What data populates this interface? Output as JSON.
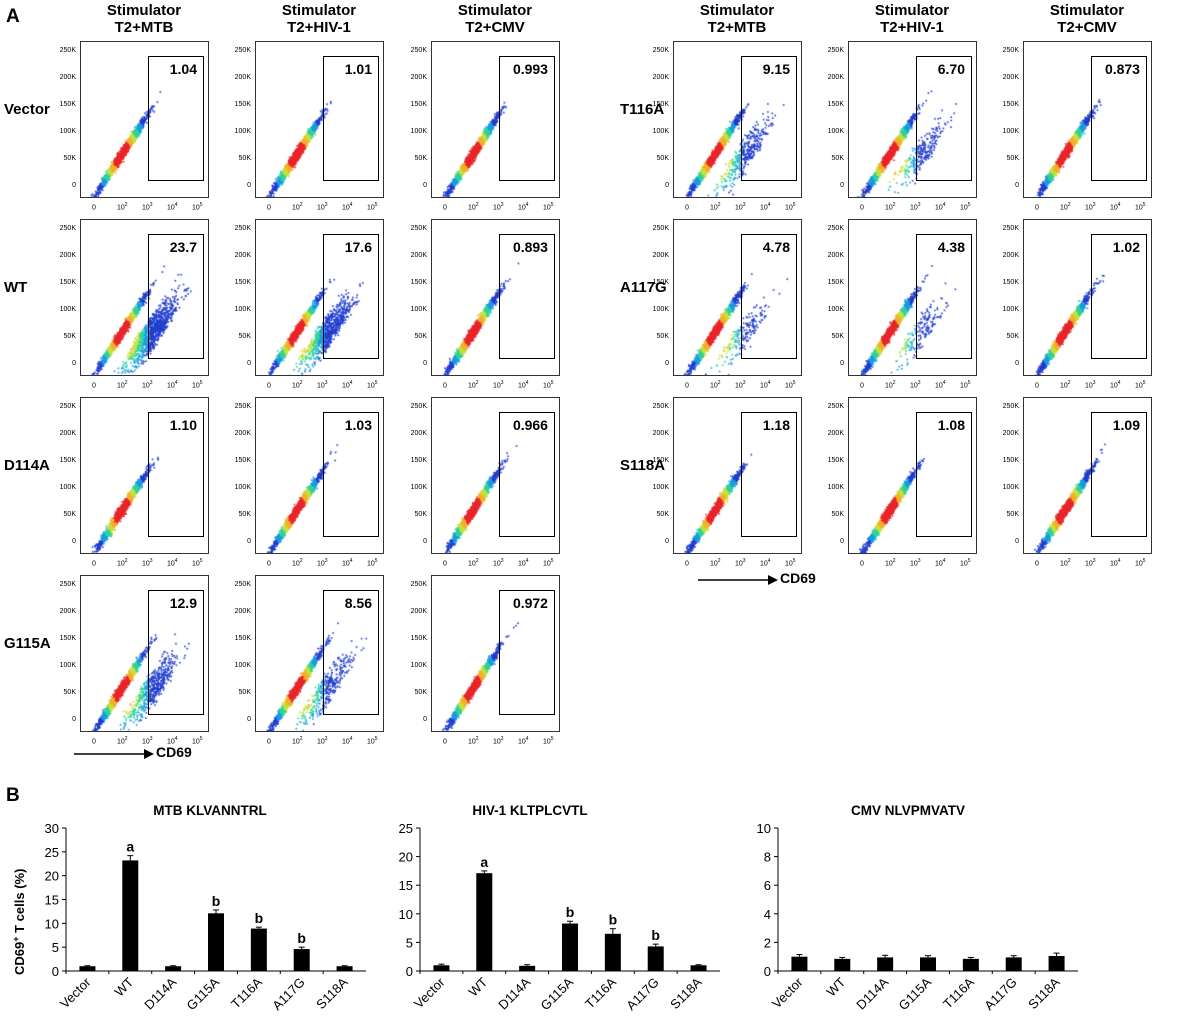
{
  "panel_labels": {
    "a": "A",
    "b": "B"
  },
  "flow": {
    "col_headers": [
      "Stimulator\nT2+MTB",
      "Stimulator\nT2+HIV-1",
      "Stimulator\nT2+CMV"
    ],
    "y_ticks": [
      "250K",
      "200K",
      "150K",
      "100K",
      "50K",
      "0"
    ],
    "x_tick_base": [
      "0",
      "10",
      "10",
      "10",
      "10"
    ],
    "x_tick_exp": [
      "",
      "2",
      "3",
      "4",
      "5"
    ],
    "axis_label": "CD69",
    "left_rows": [
      {
        "label": "Vector",
        "values": [
          "1.04",
          "1.01",
          "0.993"
        ]
      },
      {
        "label": "WT",
        "values": [
          "23.7",
          "17.6",
          "0.893"
        ]
      },
      {
        "label": "D114A",
        "values": [
          "1.10",
          "1.03",
          "0.966"
        ]
      },
      {
        "label": "G115A",
        "values": [
          "12.9",
          "8.56",
          "0.972"
        ]
      }
    ],
    "right_rows": [
      {
        "label": "T116A",
        "values": [
          "9.15",
          "6.70",
          "0.873"
        ]
      },
      {
        "label": "A117G",
        "values": [
          "4.78",
          "4.38",
          "1.02"
        ]
      },
      {
        "label": "S118A",
        "values": [
          "1.18",
          "1.08",
          "1.09"
        ]
      }
    ]
  },
  "chart_data": [
    {
      "type": "bar",
      "title": "MTB  KLVANNTRL",
      "ylabel": "CD69+ T cells (%)",
      "categories": [
        "Vector",
        "WT",
        "D114A",
        "G115A",
        "T116A",
        "A117G",
        "S118A"
      ],
      "values": [
        1.0,
        23.2,
        1.0,
        12.1,
        8.9,
        4.6,
        1.0
      ],
      "errors": [
        0.1,
        1.0,
        0.1,
        0.7,
        0.3,
        0.4,
        0.1
      ],
      "annotations": [
        "",
        "a",
        "",
        "b",
        "b",
        "b",
        ""
      ],
      "ylim": [
        0,
        30
      ],
      "yticks": [
        0,
        5,
        10,
        15,
        20,
        25,
        30
      ]
    },
    {
      "type": "bar",
      "title": "HIV-1  KLTPLCVTL",
      "categories": [
        "Vector",
        "WT",
        "D114A",
        "G115A",
        "T116A",
        "A117G",
        "S118A"
      ],
      "values": [
        1.0,
        17.1,
        0.9,
        8.3,
        6.5,
        4.3,
        1.0
      ],
      "errors": [
        0.2,
        0.4,
        0.2,
        0.4,
        0.9,
        0.4,
        0.1
      ],
      "annotations": [
        "",
        "a",
        "",
        "b",
        "b",
        "b",
        ""
      ],
      "ylim": [
        0,
        25
      ],
      "yticks": [
        0,
        5,
        10,
        15,
        20,
        25
      ]
    },
    {
      "type": "bar",
      "title": "CMV  NLVPMVATV",
      "categories": [
        "Vector",
        "WT",
        "D114A",
        "G115A",
        "T116A",
        "A117G",
        "S118A"
      ],
      "values": [
        1.0,
        0.85,
        0.95,
        0.95,
        0.85,
        0.95,
        1.05
      ],
      "errors": [
        0.15,
        0.1,
        0.15,
        0.12,
        0.1,
        0.12,
        0.2
      ],
      "annotations": [
        "",
        "",
        "",
        "",
        "",
        "",
        ""
      ],
      "ylim": [
        0,
        10
      ],
      "yticks": [
        0,
        2,
        4,
        6,
        8,
        10
      ]
    }
  ]
}
